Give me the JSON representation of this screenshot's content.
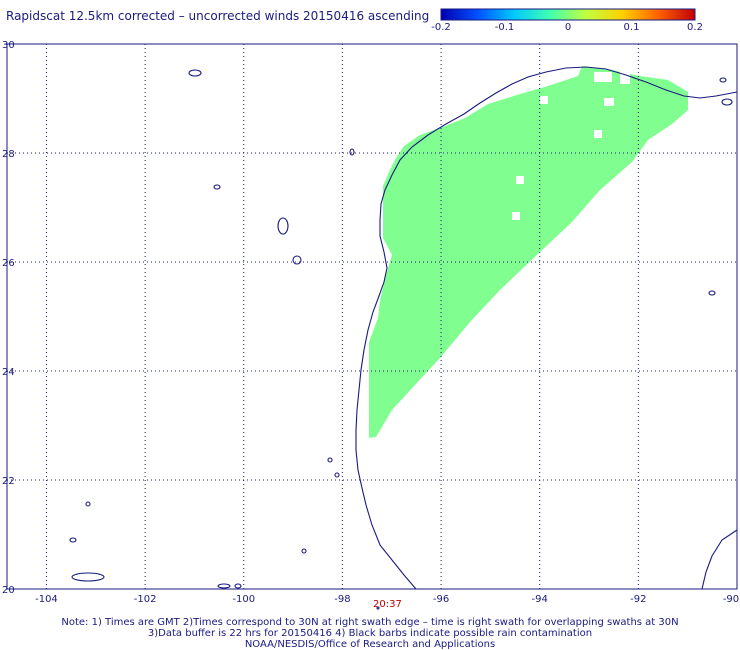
{
  "title": "Rapidscat 12.5km corrected – uncorrected winds 20150416 ascending",
  "colorbar": {
    "ticks": [
      "-0.2",
      "-0.1",
      "0",
      "0.1",
      "0.2"
    ],
    "colors": [
      "#0000b0",
      "#0050ff",
      "#00c8ff",
      "#40ffb0",
      "#c0ff40",
      "#ffd000",
      "#ff6000",
      "#c00000"
    ]
  },
  "map": {
    "lon_ticks": [
      "-104",
      "-102",
      "-100",
      "-98",
      "-96",
      "-94",
      "-92",
      "-90"
    ],
    "lat_ticks": [
      "20",
      "22",
      "24",
      "26",
      "28",
      "30"
    ],
    "lon_range": [
      -104.8,
      -90
    ],
    "lat_range": [
      20,
      30
    ],
    "grid": "dotted",
    "coast_color": "#1a1a80",
    "swath_color": "#80ff90"
  },
  "time_label": "20:37",
  "notes": [
    "Note: 1) Times are GMT 2)Times correspond to 30N at right swath edge – time is right swath for overlapping swaths at 30N",
    "3)Data buffer is 22 hrs for 20150416 4) Black barbs indicate possible rain contamination",
    "NOAA/NESDIS/Office of Research and Applications"
  ]
}
